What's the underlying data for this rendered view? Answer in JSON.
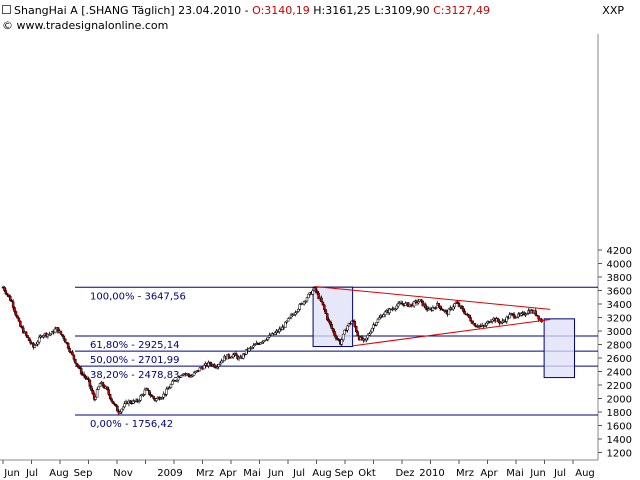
{
  "header": {
    "name": "ShangHai A",
    "symbol": "[.SHANG  Täglich]",
    "date": "23.04.2010",
    "open": "O:3140,19",
    "high": "H:3161,25",
    "low": "L:3109,90",
    "close": "C:3127,49",
    "copyright": "© www.tradesignalonline.com",
    "ticker": "XXP"
  },
  "chart_data": {
    "type": "candlestick",
    "ylim": [
      1150,
      4400
    ],
    "y_ticks": [
      1200,
      1400,
      1600,
      1800,
      2000,
      2200,
      2400,
      2600,
      2800,
      3000,
      3200,
      3400,
      3600,
      3800,
      4000,
      4200
    ],
    "x_labels": [
      "Jun",
      "Jul",
      "Aug",
      "Sep",
      "Nov",
      "2009",
      "Mrz",
      "Apr",
      "Mai",
      "Jun",
      "Jul",
      "Aug",
      "Sep",
      "Okt",
      "Dez",
      "2010",
      "Mrz",
      "Apr",
      "Mai",
      "Jun",
      "Jul",
      "Aug"
    ],
    "fib_levels": [
      {
        "label": "100,00% - 3647,56",
        "value": 3647.56
      },
      {
        "label": "61,80% - 2925,14",
        "value": 2925.14
      },
      {
        "label": "50,00% - 2701,99",
        "value": 2701.99
      },
      {
        "label": "38,20% - 2478,83",
        "value": 2478.83
      },
      {
        "label": "0,00% - 1756,42",
        "value": 1756.42
      }
    ],
    "price_path": [
      {
        "m": 0.0,
        "v": 3650
      },
      {
        "m": 0.3,
        "v": 3420
      },
      {
        "m": 0.55,
        "v": 3080
      },
      {
        "m": 0.8,
        "v": 2900
      },
      {
        "m": 1.0,
        "v": 2760
      },
      {
        "m": 1.3,
        "v": 2950
      },
      {
        "m": 1.6,
        "v": 2960
      },
      {
        "m": 1.75,
        "v": 3040
      },
      {
        "m": 2.0,
        "v": 2900
      },
      {
        "m": 2.3,
        "v": 2620
      },
      {
        "m": 2.55,
        "v": 2400
      },
      {
        "m": 2.8,
        "v": 2260
      },
      {
        "m": 3.0,
        "v": 1990
      },
      {
        "m": 3.2,
        "v": 2230
      },
      {
        "m": 3.4,
        "v": 2140
      },
      {
        "m": 3.6,
        "v": 1950
      },
      {
        "m": 3.8,
        "v": 1800
      },
      {
        "m": 4.1,
        "v": 1950
      },
      {
        "m": 4.4,
        "v": 1950
      },
      {
        "m": 4.7,
        "v": 2130
      },
      {
        "m": 5.0,
        "v": 1980
      },
      {
        "m": 5.3,
        "v": 2060
      },
      {
        "m": 5.6,
        "v": 2250
      },
      {
        "m": 5.9,
        "v": 2380
      },
      {
        "m": 6.2,
        "v": 2330
      },
      {
        "m": 6.5,
        "v": 2450
      },
      {
        "m": 6.8,
        "v": 2520
      },
      {
        "m": 7.0,
        "v": 2480
      },
      {
        "m": 7.3,
        "v": 2610
      },
      {
        "m": 7.6,
        "v": 2650
      },
      {
        "m": 7.8,
        "v": 2580
      },
      {
        "m": 8.0,
        "v": 2700
      },
      {
        "m": 8.3,
        "v": 2790
      },
      {
        "m": 8.6,
        "v": 2880
      },
      {
        "m": 8.9,
        "v": 2950
      },
      {
        "m": 9.2,
        "v": 3050
      },
      {
        "m": 9.5,
        "v": 3230
      },
      {
        "m": 9.8,
        "v": 3390
      },
      {
        "m": 10.0,
        "v": 3500
      },
      {
        "m": 10.25,
        "v": 3620
      },
      {
        "m": 10.5,
        "v": 3400
      },
      {
        "m": 10.7,
        "v": 3150
      },
      {
        "m": 10.9,
        "v": 2950
      },
      {
        "m": 11.1,
        "v": 2820
      },
      {
        "m": 11.3,
        "v": 3060
      },
      {
        "m": 11.5,
        "v": 3160
      },
      {
        "m": 11.7,
        "v": 2900
      },
      {
        "m": 11.9,
        "v": 2840
      },
      {
        "m": 12.2,
        "v": 3100
      },
      {
        "m": 12.5,
        "v": 3250
      },
      {
        "m": 12.8,
        "v": 3330
      },
      {
        "m": 13.1,
        "v": 3410
      },
      {
        "m": 13.4,
        "v": 3380
      },
      {
        "m": 13.7,
        "v": 3450
      },
      {
        "m": 14.0,
        "v": 3300
      },
      {
        "m": 14.3,
        "v": 3390
      },
      {
        "m": 14.6,
        "v": 3260
      },
      {
        "m": 14.9,
        "v": 3420
      },
      {
        "m": 15.2,
        "v": 3270
      },
      {
        "m": 15.5,
        "v": 3100
      },
      {
        "m": 15.8,
        "v": 3060
      },
      {
        "m": 16.1,
        "v": 3190
      },
      {
        "m": 16.4,
        "v": 3120
      },
      {
        "m": 16.7,
        "v": 3240
      },
      {
        "m": 17.0,
        "v": 3220
      },
      {
        "m": 17.3,
        "v": 3300
      },
      {
        "m": 17.5,
        "v": 3270
      },
      {
        "m": 17.75,
        "v": 3130
      }
    ],
    "trendlines": [
      {
        "from": {
          "m": 10.25,
          "v": 3660
        },
        "to": {
          "m": 18.0,
          "v": 3320
        }
      },
      {
        "from": {
          "m": 11.5,
          "v": 2780
        },
        "to": {
          "m": 18.0,
          "v": 3170
        }
      }
    ],
    "boxes": [
      {
        "from": {
          "m": 10.2,
          "v": 3650
        },
        "to": {
          "m": 11.5,
          "v": 2770
        }
      },
      {
        "from": {
          "m": 17.8,
          "v": 3180
        },
        "to": {
          "m": 18.8,
          "v": 2310
        }
      }
    ]
  }
}
